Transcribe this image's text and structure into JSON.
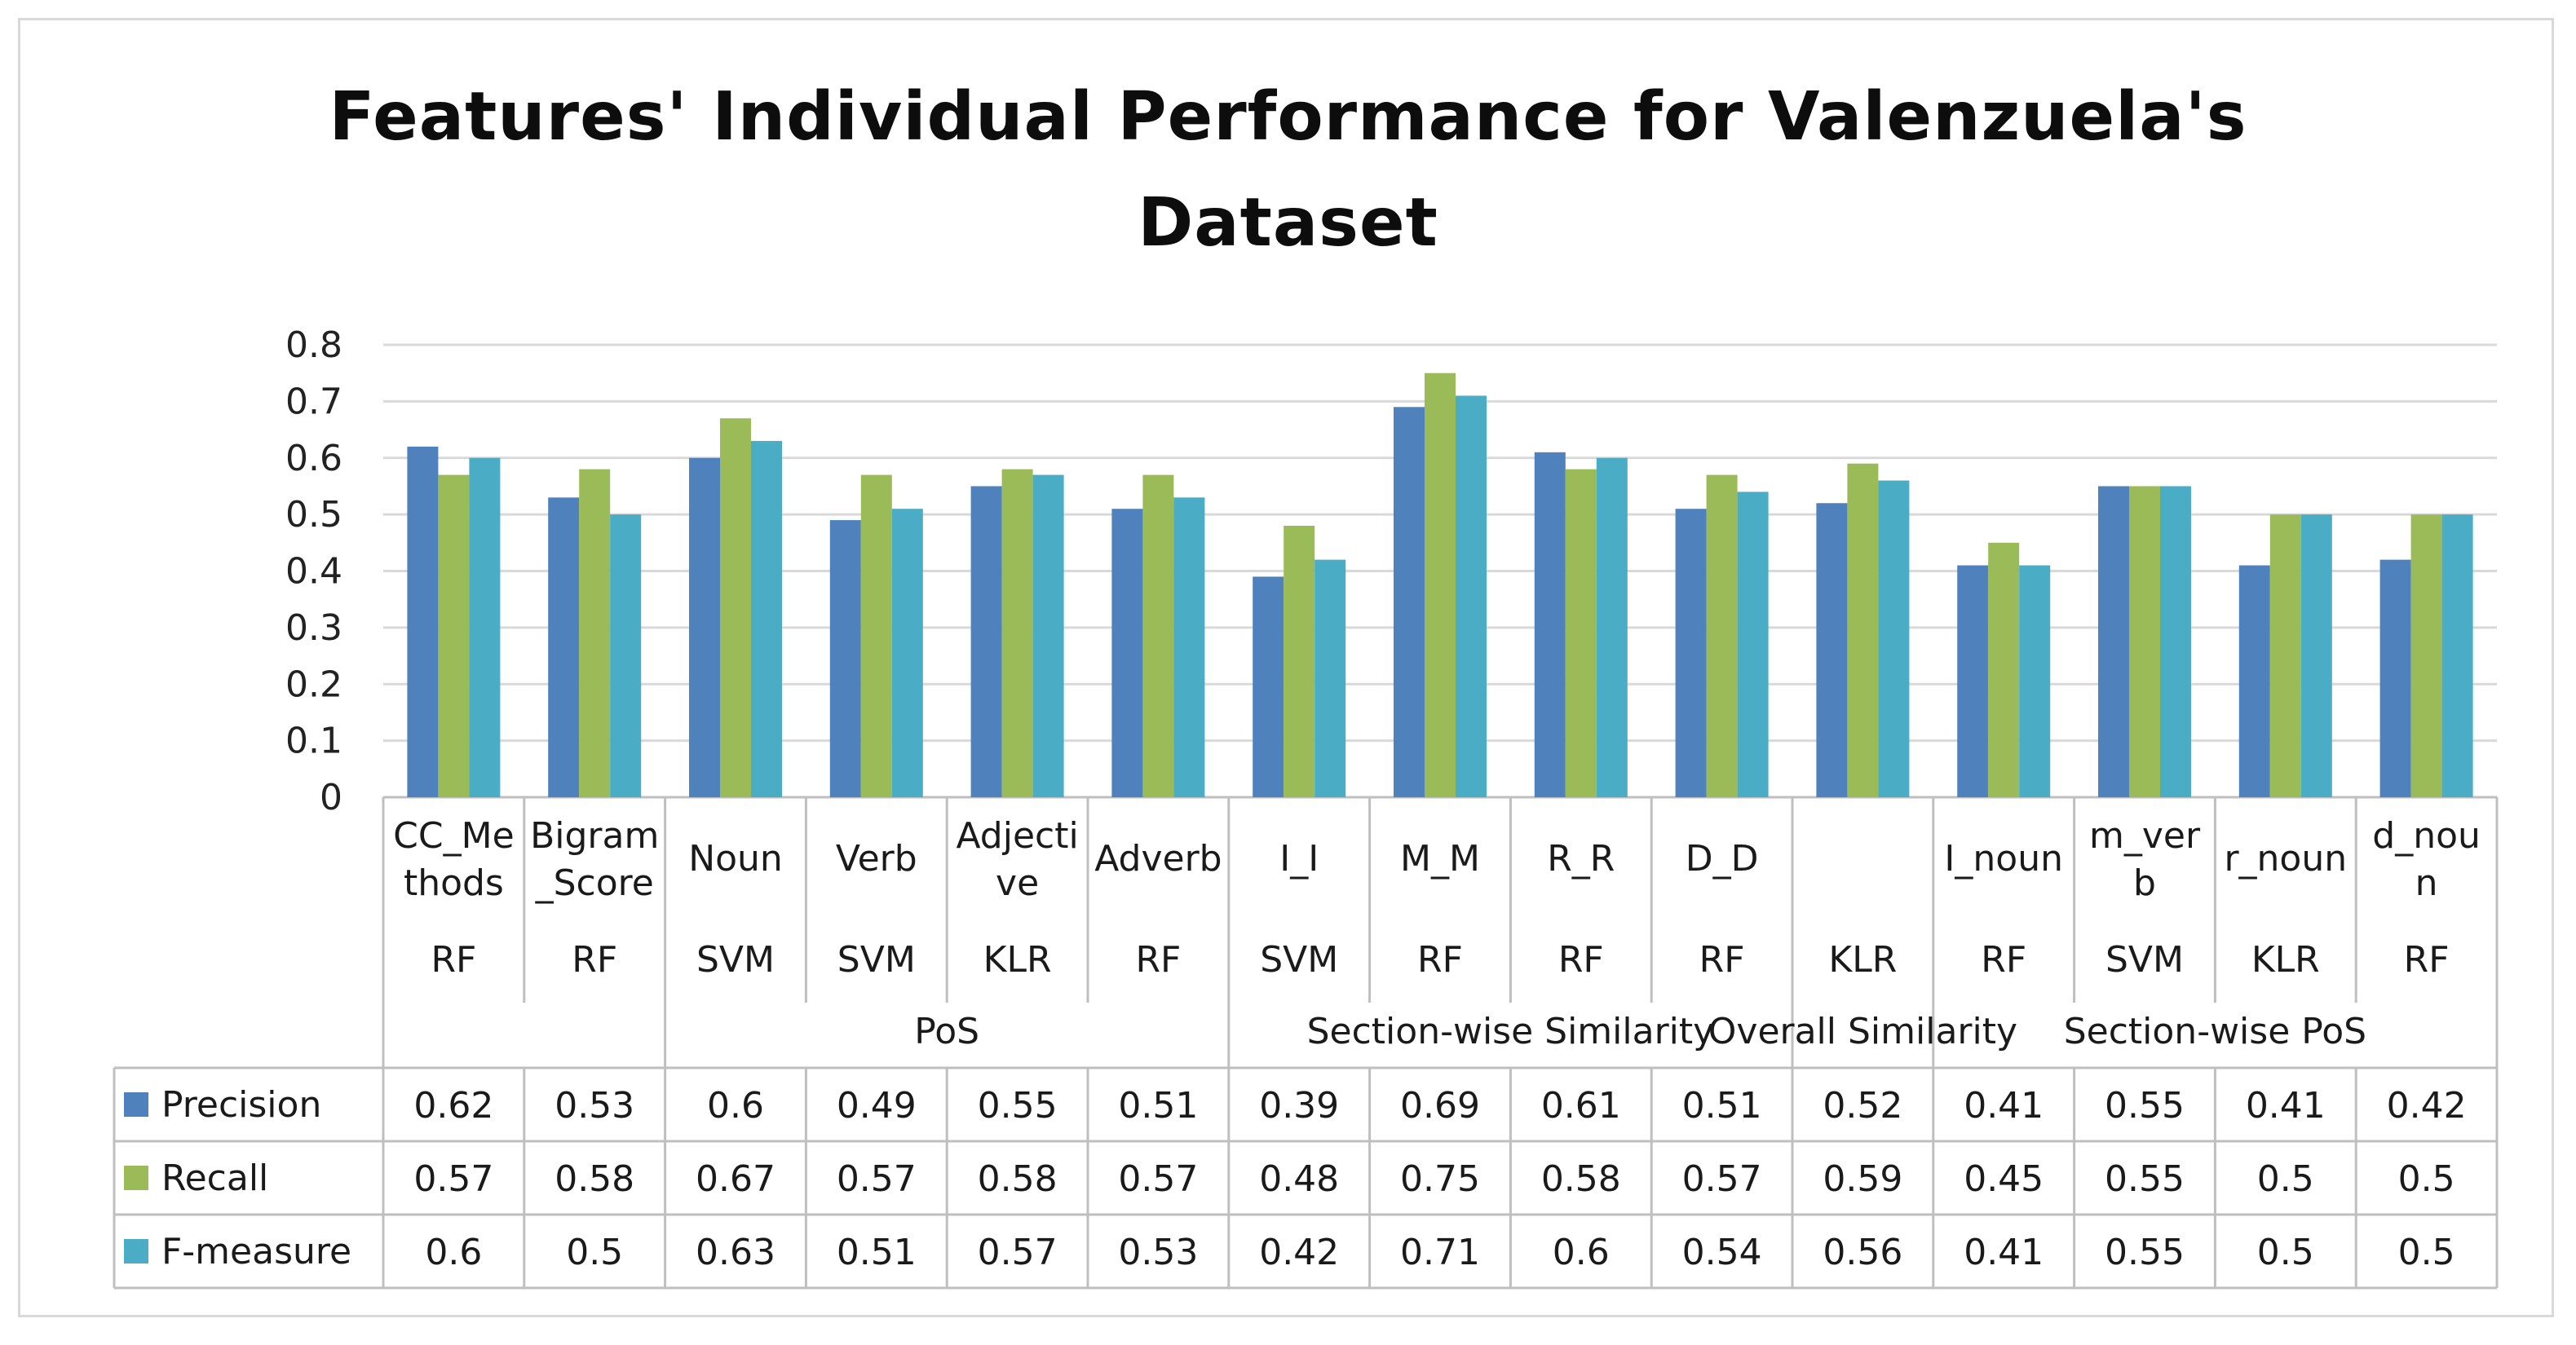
{
  "chart_data": {
    "type": "bar",
    "title_lines": [
      "Features' Individual Performance for Valenzuela's",
      "Dataset"
    ],
    "ylim": [
      0,
      0.8
    ],
    "y_ticks": [
      "0",
      "0.1",
      "0.2",
      "0.3",
      "0.4",
      "0.5",
      "0.6",
      "0.7",
      "0.8"
    ],
    "grid": true,
    "legend": "table-left",
    "categories": [
      {
        "label": [
          "CC_Me",
          "thods"
        ],
        "classifier": "RF"
      },
      {
        "label": [
          "Bigram",
          "_Score"
        ],
        "classifier": "RF"
      },
      {
        "label": [
          "Noun"
        ],
        "classifier": "SVM"
      },
      {
        "label": [
          "Verb"
        ],
        "classifier": "SVM"
      },
      {
        "label": [
          "Adjecti",
          "ve"
        ],
        "classifier": "KLR"
      },
      {
        "label": [
          "Adverb"
        ],
        "classifier": "RF"
      },
      {
        "label": [
          "I_I"
        ],
        "classifier": "SVM"
      },
      {
        "label": [
          "M_M"
        ],
        "classifier": "RF"
      },
      {
        "label": [
          "R_R"
        ],
        "classifier": "RF"
      },
      {
        "label": [
          "D_D"
        ],
        "classifier": "RF"
      },
      {
        "label": [],
        "classifier": "KLR"
      },
      {
        "label": [
          "I_noun"
        ],
        "classifier": "RF"
      },
      {
        "label": [
          "m_ver",
          "b"
        ],
        "classifier": "SVM"
      },
      {
        "label": [
          "r_noun"
        ],
        "classifier": "KLR"
      },
      {
        "label": [
          "d_nou",
          "n"
        ],
        "classifier": "RF"
      }
    ],
    "groups": [
      {
        "label": "",
        "start": 0,
        "end": 1
      },
      {
        "label": "PoS",
        "start": 2,
        "end": 5
      },
      {
        "label": "Section-wise Similarity",
        "start": 6,
        "end": 9
      },
      {
        "label": "Overall Similarity",
        "start": 10,
        "end": 10
      },
      {
        "label": "Section-wise PoS",
        "start": 11,
        "end": 14
      }
    ],
    "series": [
      {
        "name": "Precision",
        "color": "#4f81bd",
        "values": [
          0.62,
          0.53,
          0.6,
          0.49,
          0.55,
          0.51,
          0.39,
          0.69,
          0.61,
          0.51,
          0.52,
          0.41,
          0.55,
          0.41,
          0.42
        ]
      },
      {
        "name": "Recall",
        "color": "#9bbb59",
        "values": [
          0.57,
          0.58,
          0.67,
          0.57,
          0.58,
          0.57,
          0.48,
          0.75,
          0.58,
          0.57,
          0.59,
          0.45,
          0.55,
          0.5,
          0.5
        ]
      },
      {
        "name": "F-measure",
        "color": "#4bacc6",
        "values": [
          0.6,
          0.5,
          0.63,
          0.51,
          0.57,
          0.53,
          0.42,
          0.71,
          0.6,
          0.54,
          0.56,
          0.41,
          0.55,
          0.5,
          0.5
        ]
      }
    ]
  }
}
